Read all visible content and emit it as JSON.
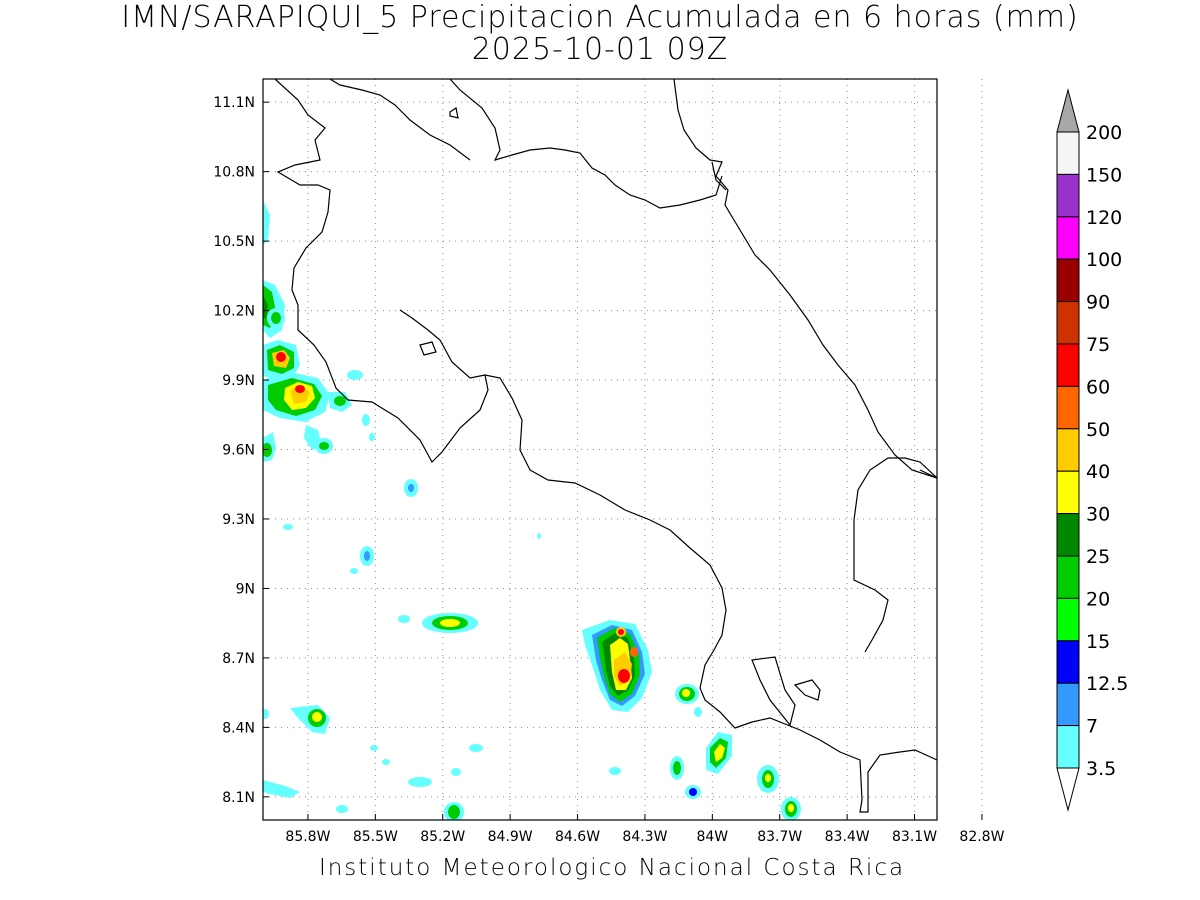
{
  "title": {
    "line1": "IMN/SARAPIQUI_5 Precipitacion Acumulada en 6 horas (mm)",
    "line2": "2025-10-01 09Z"
  },
  "credit": "Instituto Meteorologico Nacional Costa Rica",
  "map": {
    "lon_range": [
      -86.0,
      -83.0
    ],
    "lat_range": [
      8.0,
      11.2
    ],
    "lon_ticks": [
      "85.8W",
      "85.5W",
      "85.2W",
      "84.9W",
      "84.6W",
      "84.3W",
      "84W",
      "83.7W",
      "83.4W",
      "83.1W",
      "82.8W"
    ],
    "lat_ticks": [
      "11.1N",
      "10.8N",
      "10.5N",
      "10.2N",
      "9.9N",
      "9.6N",
      "9.3N",
      "9N",
      "8.7N",
      "8.4N",
      "8.1N"
    ],
    "grid": "dotted"
  },
  "colorbar": {
    "labels": [
      "200",
      "150",
      "120",
      "100",
      "90",
      "75",
      "60",
      "50",
      "40",
      "30",
      "25",
      "20",
      "15",
      "12.5",
      "7",
      "3.5"
    ],
    "colors": [
      "#f5f5f5",
      "#9933cc",
      "#ff00ff",
      "#990000",
      "#cc3300",
      "#ff0000",
      "#ff6600",
      "#ffcc00",
      "#ffff00",
      "#008800",
      "#00cc00",
      "#00ff00",
      "#0000ff",
      "#3399ff",
      "#66ffff"
    ],
    "over_color": "#a8a8a8",
    "under_color": "#ffffff"
  }
}
